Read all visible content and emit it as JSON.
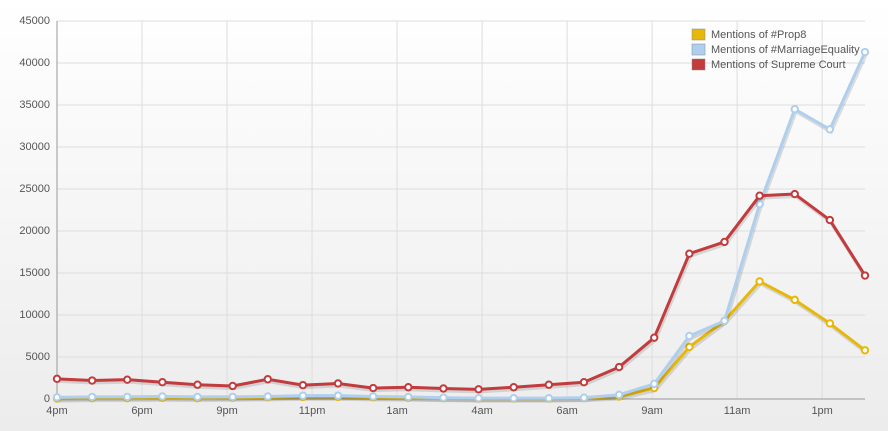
{
  "chart_data": {
    "type": "line",
    "x": [
      0,
      1,
      2,
      3,
      4,
      5,
      6,
      7,
      8,
      9,
      10,
      11,
      12,
      13,
      14,
      15,
      16,
      17,
      18,
      19,
      20,
      21,
      22,
      23
    ],
    "xlim": [
      0,
      23
    ],
    "xticks": [
      {
        "value": 0,
        "label": "4pm"
      },
      {
        "value": 2.42,
        "label": "6pm"
      },
      {
        "value": 4.84,
        "label": "9pm"
      },
      {
        "value": 7.26,
        "label": "11pm"
      },
      {
        "value": 9.68,
        "label": "1am"
      },
      {
        "value": 12.1,
        "label": "4am"
      },
      {
        "value": 14.52,
        "label": "6am"
      },
      {
        "value": 16.94,
        "label": "9am"
      },
      {
        "value": 19.36,
        "label": "11am"
      },
      {
        "value": 21.78,
        "label": "1pm"
      }
    ],
    "ylim": [
      0,
      45000
    ],
    "yticks": [
      0,
      5000,
      10000,
      15000,
      20000,
      25000,
      30000,
      35000,
      40000,
      45000
    ],
    "grid": true,
    "legend": "top-right",
    "series": [
      {
        "name": "Mentions of #Prop8",
        "color": "#e6b80c",
        "values": [
          50,
          100,
          100,
          150,
          100,
          150,
          200,
          250,
          250,
          200,
          150,
          100,
          50,
          50,
          50,
          100,
          300,
          1300,
          6200,
          9300,
          14000,
          11800,
          9000,
          5800
        ]
      },
      {
        "name": "Mentions of #MarriageEquality",
        "color": "#aecfee",
        "values": [
          200,
          250,
          250,
          300,
          250,
          250,
          300,
          400,
          400,
          300,
          250,
          150,
          100,
          100,
          100,
          150,
          500,
          1800,
          7500,
          9300,
          23200,
          34500,
          32100,
          41300
        ]
      },
      {
        "name": "Mentions of Supreme Court",
        "color": "#c23b3d",
        "values": [
          2400,
          2200,
          2300,
          2000,
          1700,
          1550,
          2350,
          1650,
          1850,
          1300,
          1400,
          1250,
          1150,
          1400,
          1700,
          2000,
          3800,
          7300,
          17300,
          18700,
          24200,
          24400,
          21300,
          14700
        ]
      }
    ]
  }
}
